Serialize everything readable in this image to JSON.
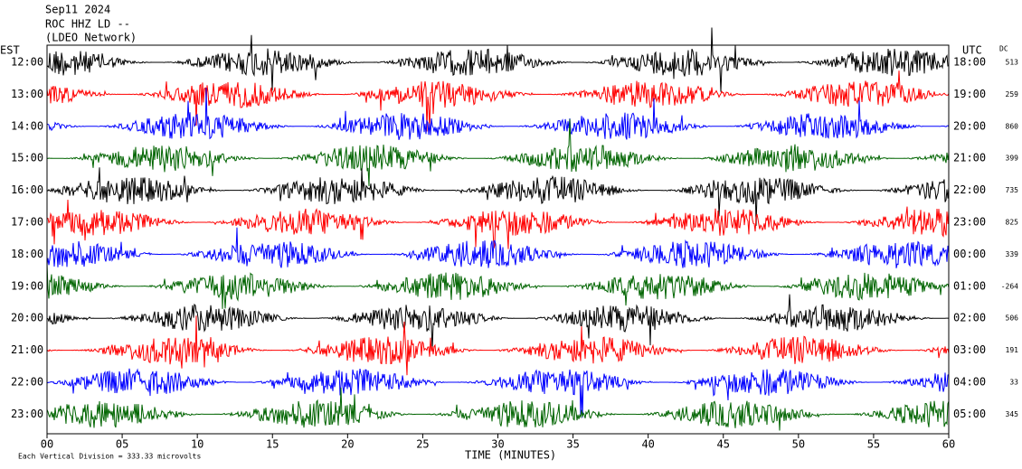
{
  "header": {
    "date": "Sep11 2024",
    "station": "ROC HHZ LD --",
    "network": "(LDEO Network)"
  },
  "left_axis": {
    "title": "EST",
    "labels": [
      "12:00",
      "13:00",
      "14:00",
      "15:00",
      "16:00",
      "17:00",
      "18:00",
      "19:00",
      "20:00",
      "21:00",
      "22:00",
      "23:00"
    ]
  },
  "right_axis": {
    "title": "UTC",
    "labels": [
      "18:00",
      "19:00",
      "20:00",
      "21:00",
      "22:00",
      "23:00",
      "00:00",
      "01:00",
      "02:00",
      "03:00",
      "04:00",
      "05:00"
    ]
  },
  "dc": {
    "title": "DC",
    "values": [
      513,
      259,
      860,
      399,
      735,
      825,
      339,
      -264,
      506,
      191,
      33,
      345
    ]
  },
  "x_axis": {
    "title": "TIME (MINUTES)",
    "ticks": [
      "00",
      "05",
      "10",
      "15",
      "20",
      "25",
      "30",
      "35",
      "40",
      "45",
      "50",
      "55",
      "60"
    ]
  },
  "footer": "Each Vertical Division = 333.33 microvolts",
  "trace_colors": [
    "#000000",
    "#ff0000",
    "#0000ff",
    "#006400"
  ]
}
